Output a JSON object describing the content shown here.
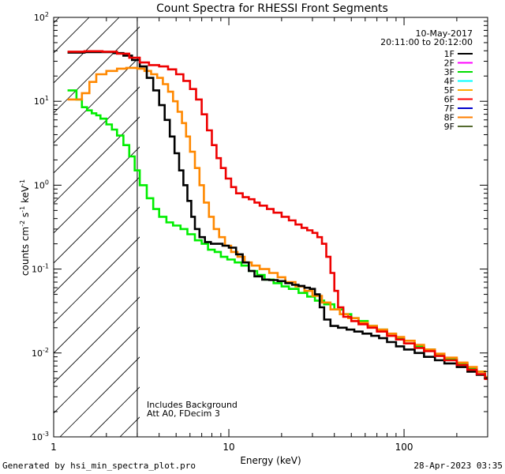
{
  "chart_data": {
    "type": "line",
    "title": "Count Spectra for RHESSI Front Segments",
    "xlabel": "Energy (keV)",
    "ylabel": "counts cm^-2 s^-1 keV^-1",
    "ylabel_parts": {
      "base": "counts cm",
      "exp1": "-2",
      "mid": " s",
      "exp2": "-1",
      "end": " keV",
      "exp3": "-1"
    },
    "xscale": "log",
    "yscale": "log",
    "xlim": [
      1,
      300
    ],
    "ylim": [
      0.001,
      100
    ],
    "x_ticks": [
      {
        "value": 1,
        "label": "1"
      },
      {
        "value": 10,
        "label": "10"
      },
      {
        "value": 100,
        "label": "100"
      }
    ],
    "y_ticks": [
      {
        "value": 0.001,
        "base": "10",
        "exp": "-3"
      },
      {
        "value": 0.01,
        "base": "10",
        "exp": "-2"
      },
      {
        "value": 0.1,
        "base": "10",
        "exp": "-1"
      },
      {
        "value": 1,
        "base": "10",
        "exp": "0"
      },
      {
        "value": 10,
        "base": "10",
        "exp": "1"
      },
      {
        "value": 100,
        "base": "10",
        "exp": "2"
      }
    ],
    "date": "10-May-2017",
    "time_range": "20:11:00 to 20:12:00",
    "shaded_region": {
      "x_min": 1,
      "x_max": 3
    },
    "annotations": [
      "Includes Background",
      "Att A0, FDecim 3"
    ],
    "legend_position": "top-right",
    "legend": [
      {
        "label": "1F",
        "color": "#000000"
      },
      {
        "label": "2F",
        "color": "#ff00ff"
      },
      {
        "label": "3F",
        "color": "#00dd00"
      },
      {
        "label": "4F",
        "color": "#00ffff"
      },
      {
        "label": "5F",
        "color": "#ffaa00"
      },
      {
        "label": "6F",
        "color": "#ff0000"
      },
      {
        "label": "7F",
        "color": "#0000cc"
      },
      {
        "label": "8F",
        "color": "#ff7f00"
      },
      {
        "label": "9F",
        "color": "#556b2f"
      }
    ],
    "series": [
      {
        "name": "3F",
        "color": "#00ee00",
        "points": [
          [
            1.2,
            13.5
          ],
          [
            1.35,
            10.5
          ],
          [
            1.45,
            8.5
          ],
          [
            1.55,
            7.8
          ],
          [
            1.65,
            7.2
          ],
          [
            1.75,
            6.8
          ],
          [
            1.85,
            6.2
          ],
          [
            2.0,
            5.3
          ],
          [
            2.15,
            4.6
          ],
          [
            2.3,
            3.9
          ],
          [
            2.5,
            3.0
          ],
          [
            2.7,
            2.2
          ],
          [
            2.9,
            1.5
          ],
          [
            3.1,
            1.0
          ],
          [
            3.4,
            0.7
          ],
          [
            3.7,
            0.52
          ],
          [
            4.0,
            0.42
          ],
          [
            4.4,
            0.36
          ],
          [
            4.8,
            0.33
          ],
          [
            5.3,
            0.3
          ],
          [
            5.8,
            0.26
          ],
          [
            6.4,
            0.22
          ],
          [
            7.0,
            0.2
          ],
          [
            7.6,
            0.17
          ],
          [
            8.3,
            0.16
          ],
          [
            9.0,
            0.14
          ],
          [
            9.8,
            0.13
          ],
          [
            10.8,
            0.12
          ],
          [
            11.8,
            0.11
          ],
          [
            13,
            0.095
          ],
          [
            14.5,
            0.085
          ],
          [
            16,
            0.075
          ],
          [
            18,
            0.068
          ],
          [
            20,
            0.062
          ],
          [
            22,
            0.058
          ],
          [
            25,
            0.052
          ],
          [
            28,
            0.047
          ],
          [
            31,
            0.042
          ],
          [
            35,
            0.038
          ],
          [
            40,
            0.033
          ],
          [
            45,
            0.029
          ],
          [
            50,
            0.026
          ],
          [
            55,
            0.024
          ],
          [
            62,
            0.021
          ],
          [
            70,
            0.019
          ],
          [
            80,
            0.017
          ],
          [
            90,
            0.015
          ],
          [
            100,
            0.013
          ],
          [
            115,
            0.012
          ],
          [
            130,
            0.011
          ],
          [
            150,
            0.0095
          ],
          [
            170,
            0.0085
          ],
          [
            200,
            0.0075
          ],
          [
            230,
            0.0065
          ],
          [
            260,
            0.006
          ],
          [
            290,
            0.005
          ]
        ]
      },
      {
        "name": "8F",
        "color": "#ff8800",
        "points": [
          [
            1.2,
            10.5
          ],
          [
            1.45,
            12.5
          ],
          [
            1.6,
            17.0
          ],
          [
            1.75,
            21.0
          ],
          [
            2.0,
            23.0
          ],
          [
            2.3,
            24.5
          ],
          [
            2.6,
            25.0
          ],
          [
            3.0,
            24.5
          ],
          [
            3.3,
            23.0
          ],
          [
            3.6,
            21.0
          ],
          [
            3.9,
            19.0
          ],
          [
            4.2,
            16.0
          ],
          [
            4.5,
            13.0
          ],
          [
            4.8,
            10.0
          ],
          [
            5.1,
            7.5
          ],
          [
            5.4,
            5.5
          ],
          [
            5.7,
            3.8
          ],
          [
            6.0,
            2.5
          ],
          [
            6.4,
            1.6
          ],
          [
            6.8,
            1.0
          ],
          [
            7.2,
            0.62
          ],
          [
            7.7,
            0.42
          ],
          [
            8.2,
            0.3
          ],
          [
            8.8,
            0.24
          ],
          [
            9.5,
            0.19
          ],
          [
            10.3,
            0.16
          ],
          [
            11.2,
            0.14
          ],
          [
            12.3,
            0.12
          ],
          [
            13.5,
            0.11
          ],
          [
            15,
            0.1
          ],
          [
            17,
            0.09
          ],
          [
            19,
            0.08
          ],
          [
            21,
            0.07
          ],
          [
            24,
            0.062
          ],
          [
            27,
            0.055
          ],
          [
            30,
            0.048
          ],
          [
            34,
            0.04
          ],
          [
            38,
            0.033
          ],
          [
            43,
            0.029
          ],
          [
            48,
            0.026
          ],
          [
            55,
            0.023
          ],
          [
            62,
            0.021
          ],
          [
            70,
            0.019
          ],
          [
            80,
            0.017
          ],
          [
            90,
            0.0155
          ],
          [
            100,
            0.014
          ],
          [
            115,
            0.0125
          ],
          [
            130,
            0.011
          ],
          [
            150,
            0.0098
          ],
          [
            170,
            0.0088
          ],
          [
            200,
            0.0077
          ],
          [
            230,
            0.0068
          ],
          [
            260,
            0.006
          ],
          [
            290,
            0.0052
          ]
        ]
      },
      {
        "name": "1F",
        "color": "#000000",
        "points": [
          [
            1.2,
            38.0
          ],
          [
            1.5,
            38.5
          ],
          [
            1.9,
            38.5
          ],
          [
            2.2,
            37.5
          ],
          [
            2.5,
            35.0
          ],
          [
            2.8,
            31.0
          ],
          [
            3.1,
            26.0
          ],
          [
            3.4,
            19.0
          ],
          [
            3.7,
            13.5
          ],
          [
            4.0,
            9.0
          ],
          [
            4.3,
            6.0
          ],
          [
            4.6,
            3.8
          ],
          [
            4.9,
            2.4
          ],
          [
            5.2,
            1.5
          ],
          [
            5.5,
            1.0
          ],
          [
            5.8,
            0.65
          ],
          [
            6.1,
            0.42
          ],
          [
            6.4,
            0.3
          ],
          [
            6.8,
            0.24
          ],
          [
            7.3,
            0.21
          ],
          [
            7.9,
            0.2
          ],
          [
            8.5,
            0.2
          ],
          [
            9.2,
            0.19
          ],
          [
            10,
            0.18
          ],
          [
            11,
            0.15
          ],
          [
            12,
            0.12
          ],
          [
            13,
            0.095
          ],
          [
            14,
            0.082
          ],
          [
            15.5,
            0.075
          ],
          [
            17,
            0.074
          ],
          [
            19,
            0.072
          ],
          [
            21,
            0.068
          ],
          [
            23,
            0.065
          ],
          [
            25,
            0.063
          ],
          [
            27,
            0.06
          ],
          [
            29,
            0.058
          ],
          [
            31,
            0.05
          ],
          [
            33,
            0.035
          ],
          [
            35,
            0.025
          ],
          [
            38,
            0.021
          ],
          [
            42,
            0.02
          ],
          [
            47,
            0.019
          ],
          [
            52,
            0.018
          ],
          [
            58,
            0.017
          ],
          [
            65,
            0.016
          ],
          [
            72,
            0.015
          ],
          [
            80,
            0.0135
          ],
          [
            90,
            0.012
          ],
          [
            100,
            0.011
          ],
          [
            115,
            0.01
          ],
          [
            130,
            0.009
          ],
          [
            150,
            0.0082
          ],
          [
            170,
            0.0075
          ],
          [
            200,
            0.0068
          ],
          [
            230,
            0.006
          ],
          [
            260,
            0.0055
          ],
          [
            290,
            0.005
          ]
        ]
      },
      {
        "name": "6F",
        "color": "#ee0000",
        "points": [
          [
            1.2,
            39.0
          ],
          [
            1.5,
            39.5
          ],
          [
            1.9,
            39.0
          ],
          [
            2.3,
            37.0
          ],
          [
            2.7,
            33.0
          ],
          [
            3.1,
            29.0
          ],
          [
            3.5,
            27.0
          ],
          [
            4.0,
            26.0
          ],
          [
            4.5,
            24.0
          ],
          [
            5.0,
            21.0
          ],
          [
            5.5,
            17.5
          ],
          [
            6.0,
            14.0
          ],
          [
            6.5,
            10.5
          ],
          [
            7.0,
            7.0
          ],
          [
            7.5,
            4.5
          ],
          [
            8.0,
            3.0
          ],
          [
            8.5,
            2.1
          ],
          [
            9.0,
            1.6
          ],
          [
            9.6,
            1.2
          ],
          [
            10.3,
            0.95
          ],
          [
            11.0,
            0.8
          ],
          [
            12,
            0.72
          ],
          [
            13,
            0.68
          ],
          [
            14,
            0.62
          ],
          [
            15,
            0.57
          ],
          [
            16.5,
            0.52
          ],
          [
            18,
            0.47
          ],
          [
            20,
            0.42
          ],
          [
            22,
            0.38
          ],
          [
            24,
            0.34
          ],
          [
            26,
            0.31
          ],
          [
            28,
            0.29
          ],
          [
            30,
            0.27
          ],
          [
            32,
            0.24
          ],
          [
            34,
            0.2
          ],
          [
            36,
            0.14
          ],
          [
            38,
            0.09
          ],
          [
            40,
            0.055
          ],
          [
            42,
            0.035
          ],
          [
            45,
            0.027
          ],
          [
            50,
            0.024
          ],
          [
            55,
            0.022
          ],
          [
            62,
            0.02
          ],
          [
            70,
            0.018
          ],
          [
            80,
            0.016
          ],
          [
            90,
            0.0145
          ],
          [
            100,
            0.013
          ],
          [
            115,
            0.0115
          ],
          [
            130,
            0.0105
          ],
          [
            150,
            0.0092
          ],
          [
            170,
            0.0082
          ],
          [
            200,
            0.0072
          ],
          [
            230,
            0.0063
          ],
          [
            260,
            0.0056
          ],
          [
            290,
            0.0049
          ]
        ]
      }
    ]
  },
  "footer": {
    "left": "Generated by hsi_min_spectra_plot.pro",
    "right": "28-Apr-2023 03:35"
  }
}
